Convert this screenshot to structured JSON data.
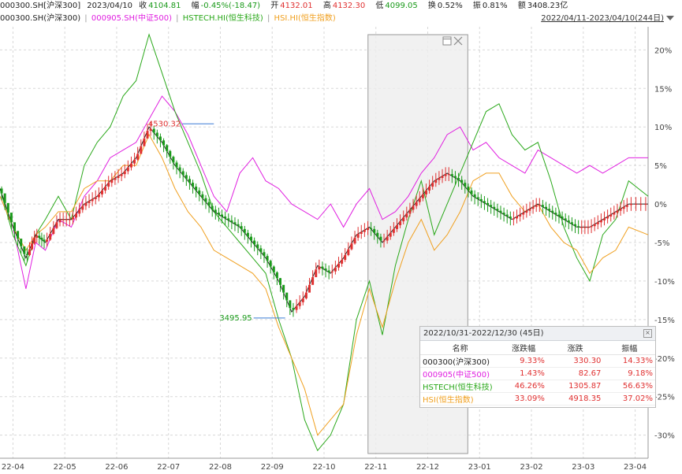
{
  "header": {
    "code": "000300.SH[沪深300]",
    "date": "2023/04/10",
    "close_label": "收",
    "close": "4104.81",
    "change_label": "幅",
    "change": "-0.45%(-18.47)",
    "open_label": "开",
    "open": "4132.01",
    "high_label": "高",
    "high": "4132.30",
    "low_label": "低",
    "low": "4099.05",
    "turnover_label": "换",
    "turnover": "0.52%",
    "amplitude_label": "振",
    "amplitude": "0.81%",
    "amount_label": "额",
    "amount": "3408.23亿"
  },
  "legend": {
    "items": [
      {
        "label": "000300.SH(沪深300)",
        "color": "#222222"
      },
      {
        "label": "000905.SH(中证500)",
        "color": "#e020e0"
      },
      {
        "label": "HSTECH.HI(恒生科技)",
        "color": "#2aa81a"
      },
      {
        "label": "HSI.HI(恒生指数)",
        "color": "#f0a020"
      }
    ],
    "separator": "|"
  },
  "range_select": "2022/04/11-2023/04/10(244日)",
  "colors": {
    "up": "#e03030",
    "down": "#1a9a1a",
    "grid": "#d8d8d8",
    "axis_text": "#444444",
    "highlight": "#eeeeee"
  },
  "chart_data": {
    "type": "line",
    "x_ticks": [
      "22-04",
      "22-05",
      "22-06",
      "22-07",
      "22-08",
      "22-09",
      "22-10",
      "22-11",
      "22-12",
      "23-01",
      "23-02",
      "23-03",
      "23-04"
    ],
    "y_ticks": [
      "20%",
      "15%",
      "10%",
      "5%",
      "0%",
      "-5%",
      "-10%",
      "-15%",
      "-20%",
      "-25%",
      "-30%"
    ],
    "ylim": [
      -33,
      23
    ],
    "selection": {
      "from": "2022/10/31",
      "to": "2022/12/30"
    },
    "annotations": [
      {
        "text": "4530.32",
        "t": 0.33,
        "y": 10.4,
        "color": "#e03030",
        "marker": "max"
      },
      {
        "text": "3495.95",
        "t": 0.44,
        "y": -14.8,
        "color": "#1a9a1a",
        "marker": "min"
      }
    ],
    "series": [
      {
        "name": "000905.SH(中证500)",
        "color": "#e020e0",
        "x": [
          0,
          0.02,
          0.04,
          0.055,
          0.07,
          0.09,
          0.11,
          0.13,
          0.15,
          0.17,
          0.19,
          0.21,
          0.23,
          0.25,
          0.27,
          0.29,
          0.31,
          0.33,
          0.35,
          0.37,
          0.39,
          0.41,
          0.43,
          0.45,
          0.47,
          0.49,
          0.51,
          0.53,
          0.55,
          0.57,
          0.59,
          0.61,
          0.63,
          0.65,
          0.67,
          0.69,
          0.71,
          0.73,
          0.75,
          0.77,
          0.79,
          0.81,
          0.83,
          0.85,
          0.87,
          0.89,
          0.91,
          0.93,
          0.95,
          0.97,
          1.0
        ],
        "values": [
          1,
          -3,
          -11,
          -5,
          -6,
          -2,
          -3,
          1,
          3,
          6,
          7,
          8,
          11,
          14,
          12,
          9,
          5,
          1,
          -1,
          4,
          6,
          3,
          2,
          0,
          -1,
          -2,
          0,
          -3,
          0,
          2,
          -2,
          -1,
          1,
          4,
          6,
          9,
          10,
          7,
          8,
          6,
          5,
          4,
          7,
          6,
          5,
          4,
          5,
          4,
          5,
          6,
          6
        ]
      },
      {
        "name": "HSTECH.HI(恒生科技)",
        "color": "#2aa81a",
        "x": [
          0,
          0.02,
          0.04,
          0.055,
          0.07,
          0.09,
          0.11,
          0.13,
          0.15,
          0.17,
          0.19,
          0.21,
          0.23,
          0.25,
          0.27,
          0.29,
          0.31,
          0.33,
          0.35,
          0.37,
          0.39,
          0.41,
          0.43,
          0.45,
          0.47,
          0.49,
          0.51,
          0.53,
          0.55,
          0.57,
          0.59,
          0.61,
          0.63,
          0.65,
          0.67,
          0.69,
          0.71,
          0.73,
          0.75,
          0.77,
          0.79,
          0.81,
          0.83,
          0.85,
          0.87,
          0.89,
          0.91,
          0.93,
          0.95,
          0.97,
          1.0
        ],
        "values": [
          2,
          -4,
          -8,
          -4,
          -2,
          1,
          -2,
          5,
          8,
          10,
          14,
          16,
          22,
          17,
          12,
          8,
          4,
          -1,
          -3,
          -5,
          -7,
          -9,
          -15,
          -20,
          -28,
          -32,
          -30,
          -26,
          -15,
          -10,
          -17,
          -8,
          -2,
          3,
          -4,
          0,
          4,
          8,
          12,
          13,
          9,
          7,
          8,
          3,
          -3,
          -7,
          -10,
          -4,
          -2,
          3,
          1
        ]
      },
      {
        "name": "HSI.HI(恒生指数)",
        "color": "#f0a020",
        "x": [
          0,
          0.02,
          0.04,
          0.055,
          0.07,
          0.09,
          0.11,
          0.13,
          0.15,
          0.17,
          0.19,
          0.21,
          0.23,
          0.25,
          0.27,
          0.29,
          0.31,
          0.33,
          0.35,
          0.37,
          0.39,
          0.41,
          0.43,
          0.45,
          0.47,
          0.49,
          0.51,
          0.53,
          0.55,
          0.57,
          0.59,
          0.61,
          0.63,
          0.65,
          0.67,
          0.69,
          0.71,
          0.73,
          0.75,
          0.77,
          0.79,
          0.81,
          0.83,
          0.85,
          0.87,
          0.89,
          0.91,
          0.93,
          0.95,
          0.97,
          1.0
        ],
        "values": [
          1,
          -3,
          -6,
          -4,
          -3,
          -1,
          -1,
          2,
          3,
          3,
          5,
          5,
          9,
          6,
          2,
          -1,
          -3,
          -6,
          -7,
          -8,
          -9,
          -11,
          -16,
          -20,
          -24,
          -30,
          -28,
          -26,
          -17,
          -11,
          -16,
          -10,
          -5,
          -2,
          -6,
          -4,
          -1,
          3,
          4,
          4,
          1,
          -1,
          0,
          -3,
          -5,
          -6,
          -9,
          -7,
          -6,
          -3,
          -4
        ]
      },
      {
        "name": "000300.SH(沪深300)",
        "color": "#222222",
        "x": [
          0,
          0.02,
          0.04,
          0.055,
          0.07,
          0.09,
          0.11,
          0.13,
          0.15,
          0.17,
          0.19,
          0.21,
          0.23,
          0.25,
          0.27,
          0.29,
          0.31,
          0.33,
          0.35,
          0.37,
          0.39,
          0.41,
          0.43,
          0.45,
          0.47,
          0.49,
          0.51,
          0.53,
          0.55,
          0.57,
          0.59,
          0.61,
          0.63,
          0.65,
          0.67,
          0.69,
          0.71,
          0.73,
          0.75,
          0.77,
          0.79,
          0.81,
          0.83,
          0.85,
          0.87,
          0.89,
          0.91,
          0.93,
          0.95,
          0.97,
          1.0
        ],
        "values": [
          2,
          -3,
          -7,
          -4,
          -5,
          -2,
          -2,
          0,
          1,
          3,
          4,
          6,
          10,
          8,
          5,
          3,
          1,
          -1,
          -2,
          -3,
          -5,
          -7,
          -10,
          -14,
          -12,
          -8,
          -9,
          -7,
          -4,
          -3,
          -5,
          -3,
          -1,
          1,
          3,
          4,
          3,
          1,
          0,
          -1,
          -2,
          -1,
          0,
          -1,
          -2,
          -3,
          -3,
          -2,
          -1,
          0,
          0
        ]
      }
    ],
    "stats": {
      "title": "2022/10/31-2022/12/30 (45日)",
      "headers": [
        "名称",
        "涨跌幅",
        "涨跌",
        "振幅"
      ],
      "rows": [
        {
          "name": "000300(沪深300)",
          "pct": "9.33%",
          "chg": "330.30",
          "amp": "14.33%",
          "color": "#222222"
        },
        {
          "name": "000905(中证500)",
          "pct": "1.43%",
          "chg": "82.67",
          "amp": "9.18%",
          "color": "#e020e0"
        },
        {
          "name": "HSTECH(恒生科技)",
          "pct": "46.26%",
          "chg": "1305.87",
          "amp": "56.63%",
          "color": "#2aa81a"
        },
        {
          "name": "HSI(恒生指数)",
          "pct": "33.09%",
          "chg": "4918.35",
          "amp": "37.02%",
          "color": "#f0a020"
        }
      ]
    }
  }
}
